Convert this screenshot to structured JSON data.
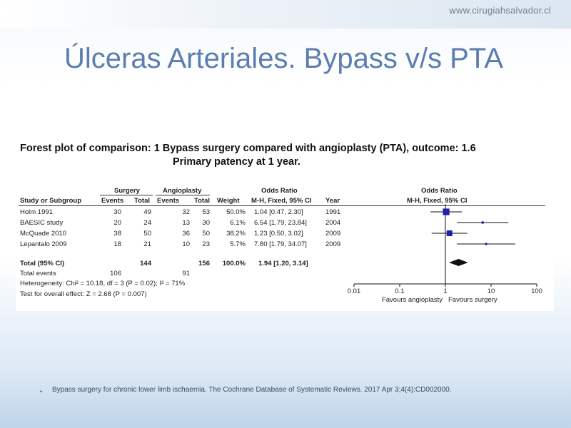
{
  "header": {
    "site": "www.cirugiahsalvador.cl"
  },
  "slide": {
    "title": "Úlceras Arteriales. Bypass v/s PTA"
  },
  "forest": {
    "title_line1": "Forest plot of comparison: 1 Bypass surgery compared with angioplasty (PTA), outcome: 1.6",
    "title_line2": "Primary patency at 1 year.",
    "group_surgery": "Surgery",
    "group_angioplasty": "Angioplasty",
    "col_study": "Study or Subgroup",
    "col_events": "Events",
    "col_total": "Total",
    "col_weight": "Weight",
    "col_or": "Odds Ratio",
    "col_or_method": "M-H, Fixed, 95% CI",
    "col_year": "Year",
    "plot_or": "Odds Ratio",
    "plot_method": "M-H, Fixed, 95% CI",
    "total_label": "Total (95% CI)",
    "total_surg": "144",
    "total_angio": "156",
    "total_weight": "100.0%",
    "total_ci": "1.94 [1.20, 3.14]",
    "events_label": "Total events",
    "events_surg": "106",
    "events_angio": "91",
    "heterogeneity": "Heterogeneity: Chi² = 10.18, df = 3 (P = 0.02); I² = 71%",
    "overall": "Test for overall effect: Z = 2.68 (P = 0.007)",
    "favours_left": "Favours angioplasty",
    "favours_right": "Favours surgery"
  },
  "chart_data": {
    "type": "forest",
    "x_scale": "log",
    "xlim": [
      0.01,
      100
    ],
    "x_ticks": [
      "0.01",
      "0.1",
      "1",
      "10",
      "100"
    ],
    "studies": [
      {
        "name": "Holm 1991",
        "surg_events": "30",
        "surg_total": "49",
        "angio_events": "32",
        "angio_total": "53",
        "weight": "50.0%",
        "ci_text": "1.04 [0.47, 2.30]",
        "year": "1991",
        "or": 1.04,
        "low": 0.47,
        "high": 2.3,
        "w": 50.0
      },
      {
        "name": "BAESIC study",
        "surg_events": "20",
        "surg_total": "24",
        "angio_events": "13",
        "angio_total": "30",
        "weight": "6.1%",
        "ci_text": "6.54 [1.79, 23.84]",
        "year": "2004",
        "or": 6.54,
        "low": 1.79,
        "high": 23.84,
        "w": 6.1
      },
      {
        "name": "McQuade 2010",
        "surg_events": "38",
        "surg_total": "50",
        "angio_events": "36",
        "angio_total": "50",
        "weight": "38.2%",
        "ci_text": "1.23 [0.50, 3.02]",
        "year": "2009",
        "or": 1.23,
        "low": 0.5,
        "high": 3.02,
        "w": 38.2
      },
      {
        "name": "Lepantalo 2009",
        "surg_events": "18",
        "surg_total": "21",
        "angio_events": "10",
        "angio_total": "23",
        "weight": "5.7%",
        "ci_text": "7.80 [1.79, 34.07]",
        "year": "2009",
        "or": 7.8,
        "low": 1.79,
        "high": 34.07,
        "w": 5.7
      }
    ],
    "pooled": {
      "or": 1.94,
      "low": 1.2,
      "high": 3.14
    }
  },
  "reference": {
    "text": "Bypass surgery for chronic lower limb ischaemia. The Cochrane Database of Systematic Reviews. 2017 Apr 3;4(4):CD002000."
  }
}
